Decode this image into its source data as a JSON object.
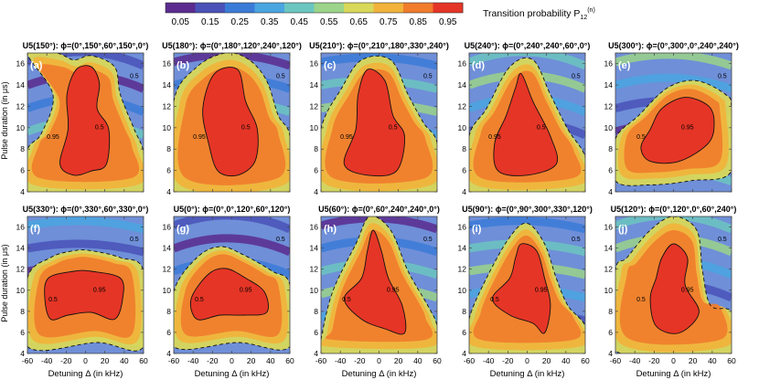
{
  "colorbar": {
    "ticks": [
      "0.05",
      "0.15",
      "0.25",
      "0.35",
      "0.45",
      "0.55",
      "0.65",
      "0.75",
      "0.85",
      "0.95"
    ],
    "colors": [
      "#5b2b8f",
      "#4a52b8",
      "#3b7bd8",
      "#4aa6e0",
      "#6cc6c0",
      "#9bd48a",
      "#d8d85a",
      "#f2b33b",
      "#f07c2c",
      "#e53526"
    ],
    "title": "Transition probability P",
    "title_sub": "12",
    "title_sup": "(n)"
  },
  "axes": {
    "ylabel_top": "Pulse duration (in μs)",
    "ylabel_bottom": "Pulse duration (in μs)",
    "xlabel": "Detuning Δ (in kHz)",
    "xticks": [
      "-60",
      "-40",
      "-20",
      "0",
      "20",
      "40",
      "60"
    ],
    "yticks": [
      "4",
      "6",
      "8",
      "10",
      "12",
      "14",
      "16"
    ],
    "xlim": [
      -60,
      60
    ],
    "ylim": [
      4,
      17
    ]
  },
  "chart_data": [
    {
      "type": "heatmap",
      "title": "U5(150°): ϕ=(0°,150°,60°,150°,0°)",
      "panel_label": "(a)",
      "contour_labels": [
        "0.5",
        "0.95",
        "0.5"
      ]
    },
    {
      "type": "heatmap",
      "title": "U5(180°): ϕ=(0°,180°,120°,240°,120°)",
      "panel_label": "(b)",
      "contour_labels": [
        "0.5",
        "0.95",
        "0.5"
      ]
    },
    {
      "type": "heatmap",
      "title": "U5(210°): ϕ=(0°,210°,180°,330°,240°)",
      "panel_label": "(c)",
      "contour_labels": [
        "0.5",
        "0.95",
        "0.5"
      ]
    },
    {
      "type": "heatmap",
      "title": "U5(240°): ϕ=(0°,240°,240°,60°,0°)",
      "panel_label": "(d)",
      "contour_labels": [
        "0.5",
        "0.95",
        "0.5"
      ]
    },
    {
      "type": "heatmap",
      "title": "U5(300°): ϕ=(0°,300°,0°,240°,240°)",
      "panel_label": "(e)",
      "contour_labels": [
        "0.95",
        "0.5",
        "0.5"
      ]
    },
    {
      "type": "heatmap",
      "title": "U5(330°): ϕ=(0°,330°,60°,330°,0°)",
      "panel_label": "(f)",
      "contour_labels": [
        "0.95",
        "0.5",
        "0.5"
      ]
    },
    {
      "type": "heatmap",
      "title": "U5(0°): ϕ=(0°,0°,120°,60°,120°)",
      "panel_label": "(g)",
      "contour_labels": [
        "0.95",
        "0.5",
        "0.5"
      ]
    },
    {
      "type": "heatmap",
      "title": "U5(60°): ϕ=(0°,60°,240°,240°,0°)",
      "panel_label": "(h)",
      "contour_labels": [
        "0.95",
        "0.5",
        "0.5"
      ]
    },
    {
      "type": "heatmap",
      "title": "U5(90°): ϕ=(0°,90°,300°,330°,120°)",
      "panel_label": "(i)",
      "contour_labels": [
        "0.95",
        "0.5",
        "0.5"
      ]
    },
    {
      "type": "heatmap",
      "title": "U5(120°): ϕ=(0°,120°,0°,60°,240°)",
      "panel_label": "(j)",
      "contour_labels": [
        "0.95",
        "0.5",
        "0.5"
      ]
    }
  ]
}
